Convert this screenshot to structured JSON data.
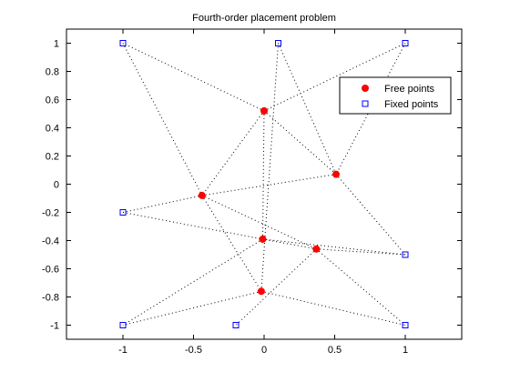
{
  "chart_data": {
    "type": "scatter",
    "title": "Fourth-order placement problem",
    "xlabel": "",
    "ylabel": "",
    "xlim": [
      -1.4,
      1.4
    ],
    "ylim": [
      -1.1,
      1.1
    ],
    "xticks": [
      -1,
      -0.5,
      0,
      0.5,
      1
    ],
    "xtick_labels": [
      "-1",
      "-0.5",
      "0",
      "0.5",
      "1"
    ],
    "yticks": [
      1,
      0.8,
      0.6,
      0.4,
      0.2,
      0,
      -0.2,
      -0.4,
      -0.6,
      -0.8,
      -1
    ],
    "ytick_labels": [
      "1",
      "0.8",
      "0.6",
      "0.4",
      "0.2",
      "0",
      "-0.2",
      "-0.4",
      "-0.6",
      "-0.8",
      "-1"
    ],
    "grid": false,
    "legend": {
      "position": "top-right",
      "entries": [
        {
          "name": "Free points",
          "marker": "filled-circle",
          "color": "#ff0000"
        },
        {
          "name": "Fixed points",
          "marker": "open-square",
          "color": "#0000ff"
        }
      ]
    },
    "series": [
      {
        "name": "Free points",
        "points": [
          [
            0.0,
            0.52
          ],
          [
            0.51,
            0.07
          ],
          [
            -0.44,
            -0.08
          ],
          [
            -0.01,
            -0.39
          ],
          [
            0.37,
            -0.46
          ],
          [
            -0.02,
            -0.76
          ]
        ]
      },
      {
        "name": "Fixed points",
        "points": [
          [
            -1.0,
            1.0
          ],
          [
            0.1,
            1.0
          ],
          [
            1.0,
            1.0
          ],
          [
            -1.0,
            -0.2
          ],
          [
            1.0,
            -0.5
          ],
          [
            -1.0,
            -1.0
          ],
          [
            -0.2,
            -1.0
          ],
          [
            1.0,
            -1.0
          ]
        ]
      }
    ],
    "edges": [
      [
        [
          0.0,
          0.52
        ],
        [
          -1.0,
          1.0
        ]
      ],
      [
        [
          0.0,
          0.52
        ],
        [
          1.0,
          1.0
        ]
      ],
      [
        [
          0.0,
          0.52
        ],
        [
          0.51,
          0.07
        ]
      ],
      [
        [
          0.0,
          0.52
        ],
        [
          -0.44,
          -0.08
        ]
      ],
      [
        [
          0.0,
          0.52
        ],
        [
          -0.01,
          -0.39
        ]
      ],
      [
        [
          0.1,
          1.0
        ],
        [
          0.51,
          0.07
        ]
      ],
      [
        [
          0.1,
          1.0
        ],
        [
          -0.02,
          -0.76
        ]
      ],
      [
        [
          1.0,
          1.0
        ],
        [
          0.51,
          0.07
        ]
      ],
      [
        [
          0.51,
          0.07
        ],
        [
          -0.44,
          -0.08
        ]
      ],
      [
        [
          0.51,
          0.07
        ],
        [
          1.0,
          -0.5
        ]
      ],
      [
        [
          -1.0,
          1.0
        ],
        [
          -0.44,
          -0.08
        ]
      ],
      [
        [
          -1.0,
          -0.2
        ],
        [
          -0.44,
          -0.08
        ]
      ],
      [
        [
          -1.0,
          -0.2
        ],
        [
          -0.01,
          -0.39
        ]
      ],
      [
        [
          -0.44,
          -0.08
        ],
        [
          0.37,
          -0.46
        ]
      ],
      [
        [
          -0.44,
          -0.08
        ],
        [
          -0.02,
          -0.76
        ]
      ],
      [
        [
          -0.01,
          -0.39
        ],
        [
          1.0,
          -0.5
        ]
      ],
      [
        [
          -0.01,
          -0.39
        ],
        [
          -1.0,
          -1.0
        ]
      ],
      [
        [
          0.37,
          -0.46
        ],
        [
          -0.01,
          -0.39
        ]
      ],
      [
        [
          0.37,
          -0.46
        ],
        [
          1.0,
          -0.5
        ]
      ],
      [
        [
          0.37,
          -0.46
        ],
        [
          1.0,
          -1.0
        ]
      ],
      [
        [
          0.37,
          -0.46
        ],
        [
          -0.2,
          -1.0
        ]
      ],
      [
        [
          -0.02,
          -0.76
        ],
        [
          -1.0,
          -1.0
        ]
      ],
      [
        [
          -0.02,
          -0.76
        ],
        [
          1.0,
          -1.0
        ]
      ]
    ]
  }
}
